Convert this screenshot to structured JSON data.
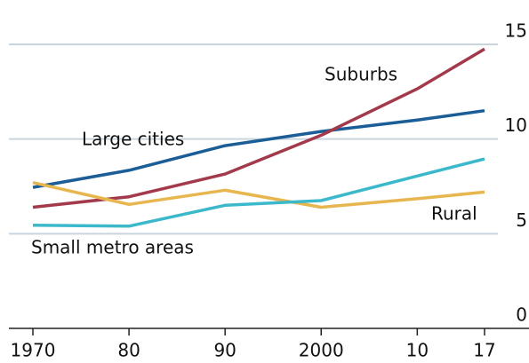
{
  "chart_data": {
    "type": "line",
    "x": [
      1970,
      1980,
      1990,
      2000,
      2010,
      2017
    ],
    "series": [
      {
        "name": "Large cities",
        "color": "#1b5d96",
        "values": [
          7.45,
          8.35,
          9.65,
          10.4,
          11.0,
          11.5
        ]
      },
      {
        "name": "Suburbs",
        "color": "#a33a4c",
        "values": [
          6.4,
          6.95,
          8.15,
          10.2,
          12.65,
          14.75
        ]
      },
      {
        "name": "Rural",
        "color": "#e8b64f",
        "values": [
          7.7,
          6.55,
          7.3,
          6.4,
          6.85,
          7.2
        ]
      },
      {
        "name": "Small metro areas",
        "color": "#3cb8cb",
        "values": [
          5.45,
          5.4,
          6.5,
          6.75,
          8.05,
          8.95
        ]
      }
    ],
    "xlim": [
      1967,
      2022
    ],
    "xticks": [
      1970,
      {
        "value": 1980,
        "label": "80"
      },
      {
        "value": 1990,
        "label": "90"
      },
      2000,
      {
        "value": 2010,
        "label": "10"
      },
      {
        "value": 2017,
        "label": "17"
      }
    ],
    "ylim": [
      0,
      16
    ],
    "yticks": [
      0,
      5,
      10,
      15
    ],
    "grid": true,
    "y_axis_side": "right"
  }
}
